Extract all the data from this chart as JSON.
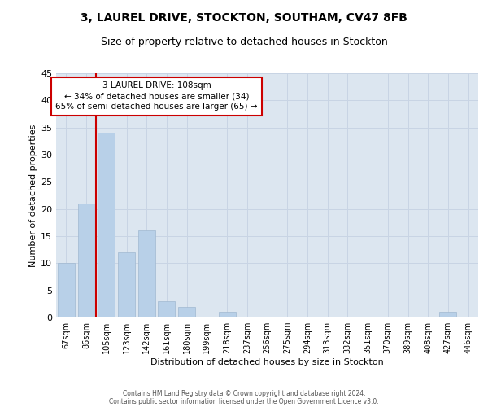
{
  "title": "3, LAUREL DRIVE, STOCKTON, SOUTHAM, CV47 8FB",
  "subtitle": "Size of property relative to detached houses in Stockton",
  "xlabel": "Distribution of detached houses by size in Stockton",
  "ylabel": "Number of detached properties",
  "bin_labels": [
    "67sqm",
    "86sqm",
    "105sqm",
    "123sqm",
    "142sqm",
    "161sqm",
    "180sqm",
    "199sqm",
    "218sqm",
    "237sqm",
    "256sqm",
    "275sqm",
    "294sqm",
    "313sqm",
    "332sqm",
    "351sqm",
    "370sqm",
    "389sqm",
    "408sqm",
    "427sqm",
    "446sqm"
  ],
  "bar_heights": [
    10,
    21,
    34,
    12,
    16,
    3,
    2,
    0,
    1,
    0,
    0,
    0,
    0,
    0,
    0,
    0,
    0,
    0,
    0,
    1,
    0
  ],
  "bar_color": "#b8d0e8",
  "bar_edge_color": "#a0b8d0",
  "vline_color": "#cc0000",
  "vline_x": 1.5,
  "ylim": [
    0,
    45
  ],
  "annotation_text": "3 LAUREL DRIVE: 108sqm\n← 34% of detached houses are smaller (34)\n65% of semi-detached houses are larger (65) →",
  "annotation_box_color": "#cc0000",
  "footer_line1": "Contains HM Land Registry data © Crown copyright and database right 2024.",
  "footer_line2": "Contains public sector information licensed under the Open Government Licence v3.0.",
  "background_color": "#ffffff",
  "plot_bg_color": "#dce6f0",
  "grid_color": "#c8d4e4"
}
